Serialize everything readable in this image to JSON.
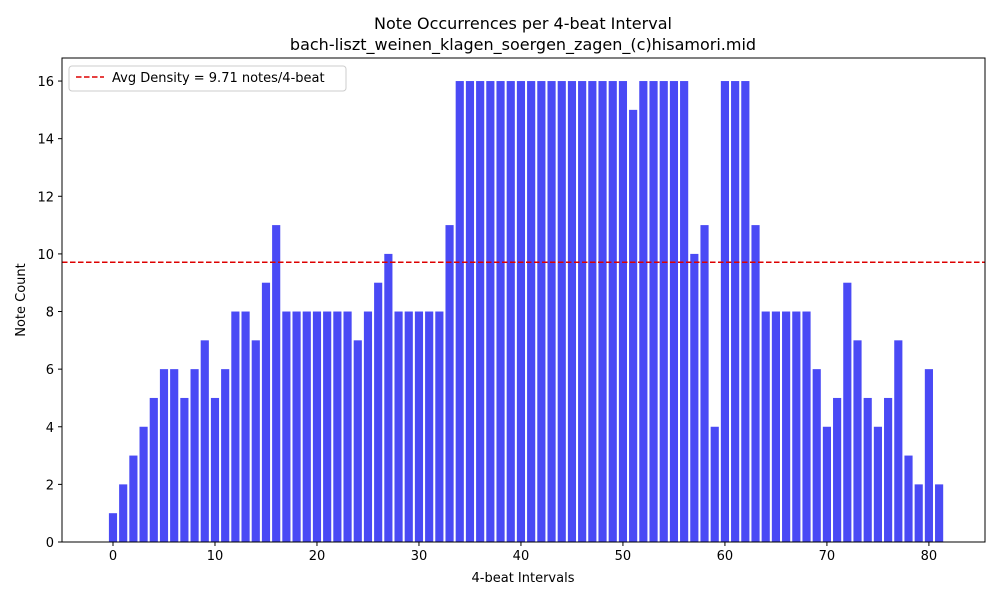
{
  "chart_data": {
    "type": "bar",
    "title_line1": "Note Occurrences per 4-beat Interval",
    "title_line2": "bach-liszt_weinen_klagen_soergen_zagen_(c)hisamori.mid",
    "xlabel": "4-beat Intervals",
    "ylabel": "Note Count",
    "xlim": [
      -5,
      85.5
    ],
    "ylim": [
      0,
      16.8
    ],
    "xticks": [
      0,
      10,
      20,
      30,
      40,
      50,
      60,
      70,
      80
    ],
    "yticks": [
      0,
      2,
      4,
      6,
      8,
      10,
      12,
      14,
      16
    ],
    "bar_color": "#4a4af5",
    "avg_line": {
      "value": 9.71,
      "label": "Avg Density = 9.71 notes/4-beat",
      "color": "#dd0000",
      "style": "dashed"
    },
    "legend_position": "top-left",
    "grid": false,
    "x": [
      0,
      1,
      2,
      3,
      4,
      5,
      6,
      7,
      8,
      9,
      10,
      11,
      12,
      13,
      14,
      15,
      16,
      17,
      18,
      19,
      20,
      21,
      22,
      23,
      24,
      25,
      26,
      27,
      28,
      29,
      30,
      31,
      32,
      33,
      34,
      35,
      36,
      37,
      38,
      39,
      40,
      41,
      42,
      43,
      44,
      45,
      46,
      47,
      48,
      49,
      50,
      51,
      52,
      53,
      54,
      55,
      56,
      57,
      58,
      59,
      60,
      61,
      62,
      63,
      64,
      65,
      66,
      67,
      68,
      69,
      70,
      71,
      72,
      73,
      74,
      75,
      76,
      77,
      78,
      79,
      80,
      81
    ],
    "values": [
      1,
      2,
      3,
      4,
      5,
      6,
      6,
      5,
      6,
      7,
      5,
      6,
      8,
      8,
      7,
      9,
      11,
      8,
      8,
      8,
      8,
      8,
      8,
      8,
      7,
      8,
      9,
      10,
      8,
      8,
      8,
      8,
      8,
      11,
      16,
      16,
      16,
      16,
      16,
      16,
      16,
      16,
      16,
      16,
      16,
      16,
      16,
      16,
      16,
      16,
      16,
      15,
      16,
      16,
      16,
      16,
      16,
      10,
      11,
      4,
      16,
      16,
      16,
      11,
      8,
      8,
      8,
      8,
      8,
      6,
      4,
      5,
      9,
      7,
      5,
      4,
      5,
      7,
      3,
      2,
      6,
      2
    ]
  }
}
